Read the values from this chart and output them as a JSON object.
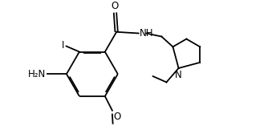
{
  "bg_color": "#ffffff",
  "line_color": "#000000",
  "line_width": 1.3,
  "font_size": 8.5,
  "fig_width": 3.34,
  "fig_height": 1.72,
  "dpi": 100,
  "xlim": [
    0.0,
    9.5
  ],
  "ylim": [
    0.2,
    5.0
  ]
}
